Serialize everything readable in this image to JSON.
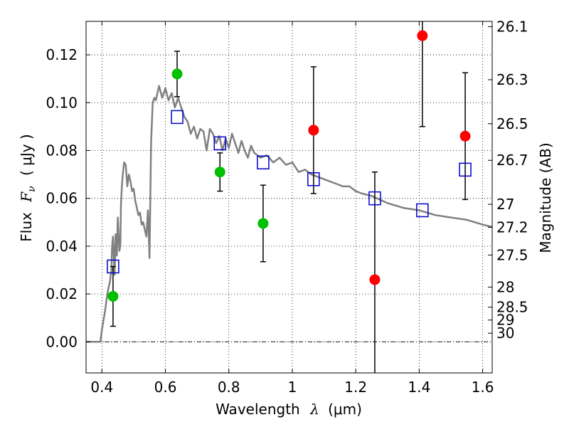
{
  "chart_data": {
    "type": "scatter",
    "title": "",
    "xlabel": "Wavelength",
    "xlabel_symbol": "λ",
    "xlabel_unit": "(μm)",
    "ylabel": "Flux",
    "ylabel_symbol": "F",
    "ylabel_symbol_sub": "ν",
    "ylabel_unit": "( μJy )",
    "y2label": "Magnitude (AB)",
    "xlim": [
      0.35,
      1.63
    ],
    "ylim": [
      -0.013,
      0.134
    ],
    "grid": true,
    "x_ticks": [
      0.4,
      0.6,
      0.8,
      1.0,
      1.2,
      1.4,
      1.6
    ],
    "x_tick_labels": [
      "0.4",
      "0.6",
      "0.8",
      "1",
      "1.2",
      "1.4",
      "1.6"
    ],
    "y_ticks": [
      0.0,
      0.02,
      0.04,
      0.06,
      0.08,
      0.1,
      0.12
    ],
    "y_tick_labels": [
      "0.00",
      "0.02",
      "0.04",
      "0.06",
      "0.08",
      "0.10",
      "0.12"
    ],
    "y2_ticks": [
      {
        "label": "26.1",
        "flux": 0.1318
      },
      {
        "label": "26.3",
        "flux": 0.1096
      },
      {
        "label": "26.5",
        "flux": 0.0912
      },
      {
        "label": "26.7",
        "flux": 0.0759
      },
      {
        "label": "27",
        "flux": 0.0575
      },
      {
        "label": "27.2",
        "flux": 0.0479
      },
      {
        "label": "27.5",
        "flux": 0.0363
      },
      {
        "label": "28",
        "flux": 0.0229
      },
      {
        "label": "28.5",
        "flux": 0.0145
      },
      {
        "label": "29",
        "flux": 0.0091
      },
      {
        "label": "30",
        "flux": 0.0036
      }
    ],
    "series": [
      {
        "kind": "line",
        "color": "#808080",
        "x": [
          0.35,
          0.395,
          0.4,
          0.405,
          0.41,
          0.415,
          0.42,
          0.425,
          0.43,
          0.432,
          0.435,
          0.44,
          0.443,
          0.447,
          0.45,
          0.455,
          0.458,
          0.46,
          0.462,
          0.465,
          0.47,
          0.475,
          0.48,
          0.485,
          0.49,
          0.495,
          0.5,
          0.505,
          0.51,
          0.515,
          0.52,
          0.525,
          0.53,
          0.535,
          0.54,
          0.545,
          0.55,
          0.555,
          0.56,
          0.565,
          0.57,
          0.58,
          0.59,
          0.6,
          0.61,
          0.62,
          0.63,
          0.64,
          0.65,
          0.66,
          0.67,
          0.68,
          0.69,
          0.7,
          0.71,
          0.72,
          0.73,
          0.74,
          0.75,
          0.76,
          0.77,
          0.78,
          0.79,
          0.8,
          0.81,
          0.82,
          0.83,
          0.84,
          0.85,
          0.86,
          0.87,
          0.88,
          0.9,
          0.92,
          0.94,
          0.96,
          0.98,
          1.0,
          1.02,
          1.04,
          1.06,
          1.08,
          1.1,
          1.12,
          1.14,
          1.16,
          1.18,
          1.2,
          1.22,
          1.25,
          1.3,
          1.35,
          1.4,
          1.45,
          1.5,
          1.55,
          1.6,
          1.63
        ],
        "y": [
          0.0,
          0.0,
          0.005,
          0.009,
          0.013,
          0.018,
          0.022,
          0.025,
          0.03,
          0.04,
          0.044,
          0.028,
          0.045,
          0.036,
          0.052,
          0.038,
          0.04,
          0.058,
          0.063,
          0.069,
          0.075,
          0.074,
          0.065,
          0.07,
          0.067,
          0.063,
          0.064,
          0.059,
          0.056,
          0.053,
          0.054,
          0.049,
          0.05,
          0.047,
          0.044,
          0.055,
          0.035,
          0.083,
          0.1,
          0.102,
          0.101,
          0.107,
          0.102,
          0.106,
          0.101,
          0.104,
          0.098,
          0.102,
          0.098,
          0.094,
          0.092,
          0.087,
          0.09,
          0.085,
          0.089,
          0.088,
          0.08,
          0.089,
          0.087,
          0.083,
          0.086,
          0.08,
          0.085,
          0.081,
          0.087,
          0.083,
          0.079,
          0.084,
          0.08,
          0.077,
          0.082,
          0.079,
          0.077,
          0.078,
          0.075,
          0.077,
          0.074,
          0.075,
          0.071,
          0.072,
          0.07,
          0.069,
          0.068,
          0.067,
          0.066,
          0.065,
          0.065,
          0.063,
          0.062,
          0.061,
          0.058,
          0.056,
          0.055,
          0.053,
          0.052,
          0.051,
          0.049,
          0.048
        ]
      },
      {
        "kind": "square",
        "color": "#0000cc",
        "x": [
          0.435,
          0.637,
          0.772,
          0.908,
          1.067,
          1.26,
          1.41,
          1.545
        ],
        "y": [
          0.0315,
          0.094,
          0.083,
          0.075,
          0.068,
          0.06,
          0.055,
          0.072
        ]
      },
      {
        "kind": "point",
        "color": "#00c000",
        "x": [
          0.435,
          0.637,
          0.772,
          0.908
        ],
        "y": [
          0.019,
          0.112,
          0.071,
          0.0495
        ],
        "yerr": [
          0.0125,
          0.0095,
          0.008,
          0.016
        ]
      },
      {
        "kind": "point",
        "color": "#ff0000",
        "x": [
          1.067,
          1.26,
          1.41,
          1.545
        ],
        "y": [
          0.0885,
          0.026,
          0.128,
          0.086
        ],
        "yerr": [
          0.0265,
          0.045,
          0.038,
          0.0265
        ]
      }
    ]
  }
}
